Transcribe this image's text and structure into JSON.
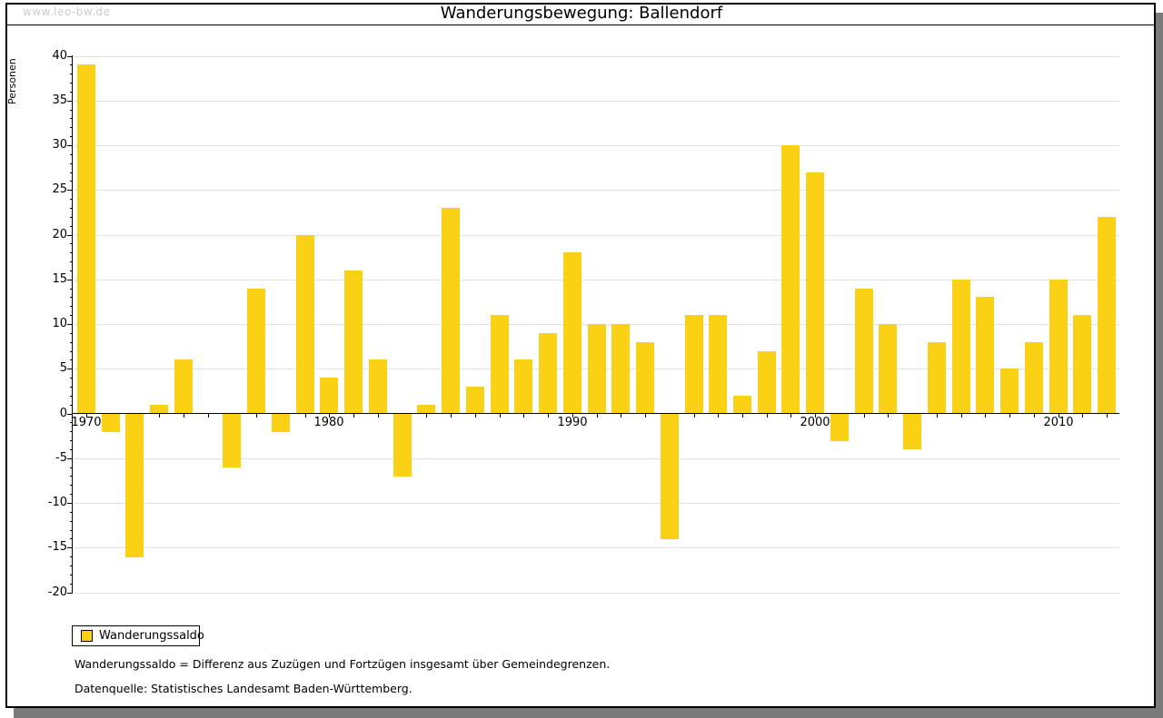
{
  "watermark": "www.leo-bw.de",
  "title": "Wanderungsbewegung: Ballendorf",
  "chart_data": {
    "type": "bar",
    "title": "Wanderungsbewegung: Ballendorf",
    "xlabel": "",
    "ylabel": "Personen",
    "ylim": [
      -20,
      40
    ],
    "y_major_step": 5,
    "y_minor_step": 1,
    "grid": true,
    "legend_position": "bottom-left",
    "bar_color": "#FBD116",
    "x_decade_tick_labels": [
      "1970",
      "1980",
      "1990",
      "2000",
      "2010"
    ],
    "categories": [
      1970,
      1971,
      1972,
      1973,
      1974,
      1975,
      1976,
      1977,
      1978,
      1979,
      1980,
      1981,
      1982,
      1983,
      1984,
      1985,
      1986,
      1987,
      1988,
      1989,
      1990,
      1991,
      1992,
      1993,
      1994,
      1995,
      1996,
      1997,
      1998,
      1999,
      2000,
      2001,
      2002,
      2003,
      2004,
      2005,
      2006,
      2007,
      2008,
      2009,
      2010,
      2011,
      2012
    ],
    "series": [
      {
        "name": "Wanderungssaldo",
        "values": [
          39,
          -2,
          -16,
          1,
          6,
          0,
          -6,
          14,
          -2,
          20,
          4,
          16,
          6,
          -7,
          1,
          23,
          3,
          11,
          6,
          9,
          18,
          10,
          10,
          8,
          -14,
          11,
          11,
          2,
          7,
          30,
          27,
          -3,
          14,
          10,
          -4,
          8,
          15,
          13,
          5,
          8,
          15,
          11,
          22
        ]
      }
    ]
  },
  "legend": {
    "label": "Wanderungssaldo",
    "swatch_color": "#FBD116"
  },
  "footnotes": [
    "Wanderungssaldo = Differenz aus Zuzügen und Fortzügen insgesamt über Gemeindegrenzen.",
    "Datenquelle: Statistisches Landesamt Baden-Württemberg."
  ]
}
